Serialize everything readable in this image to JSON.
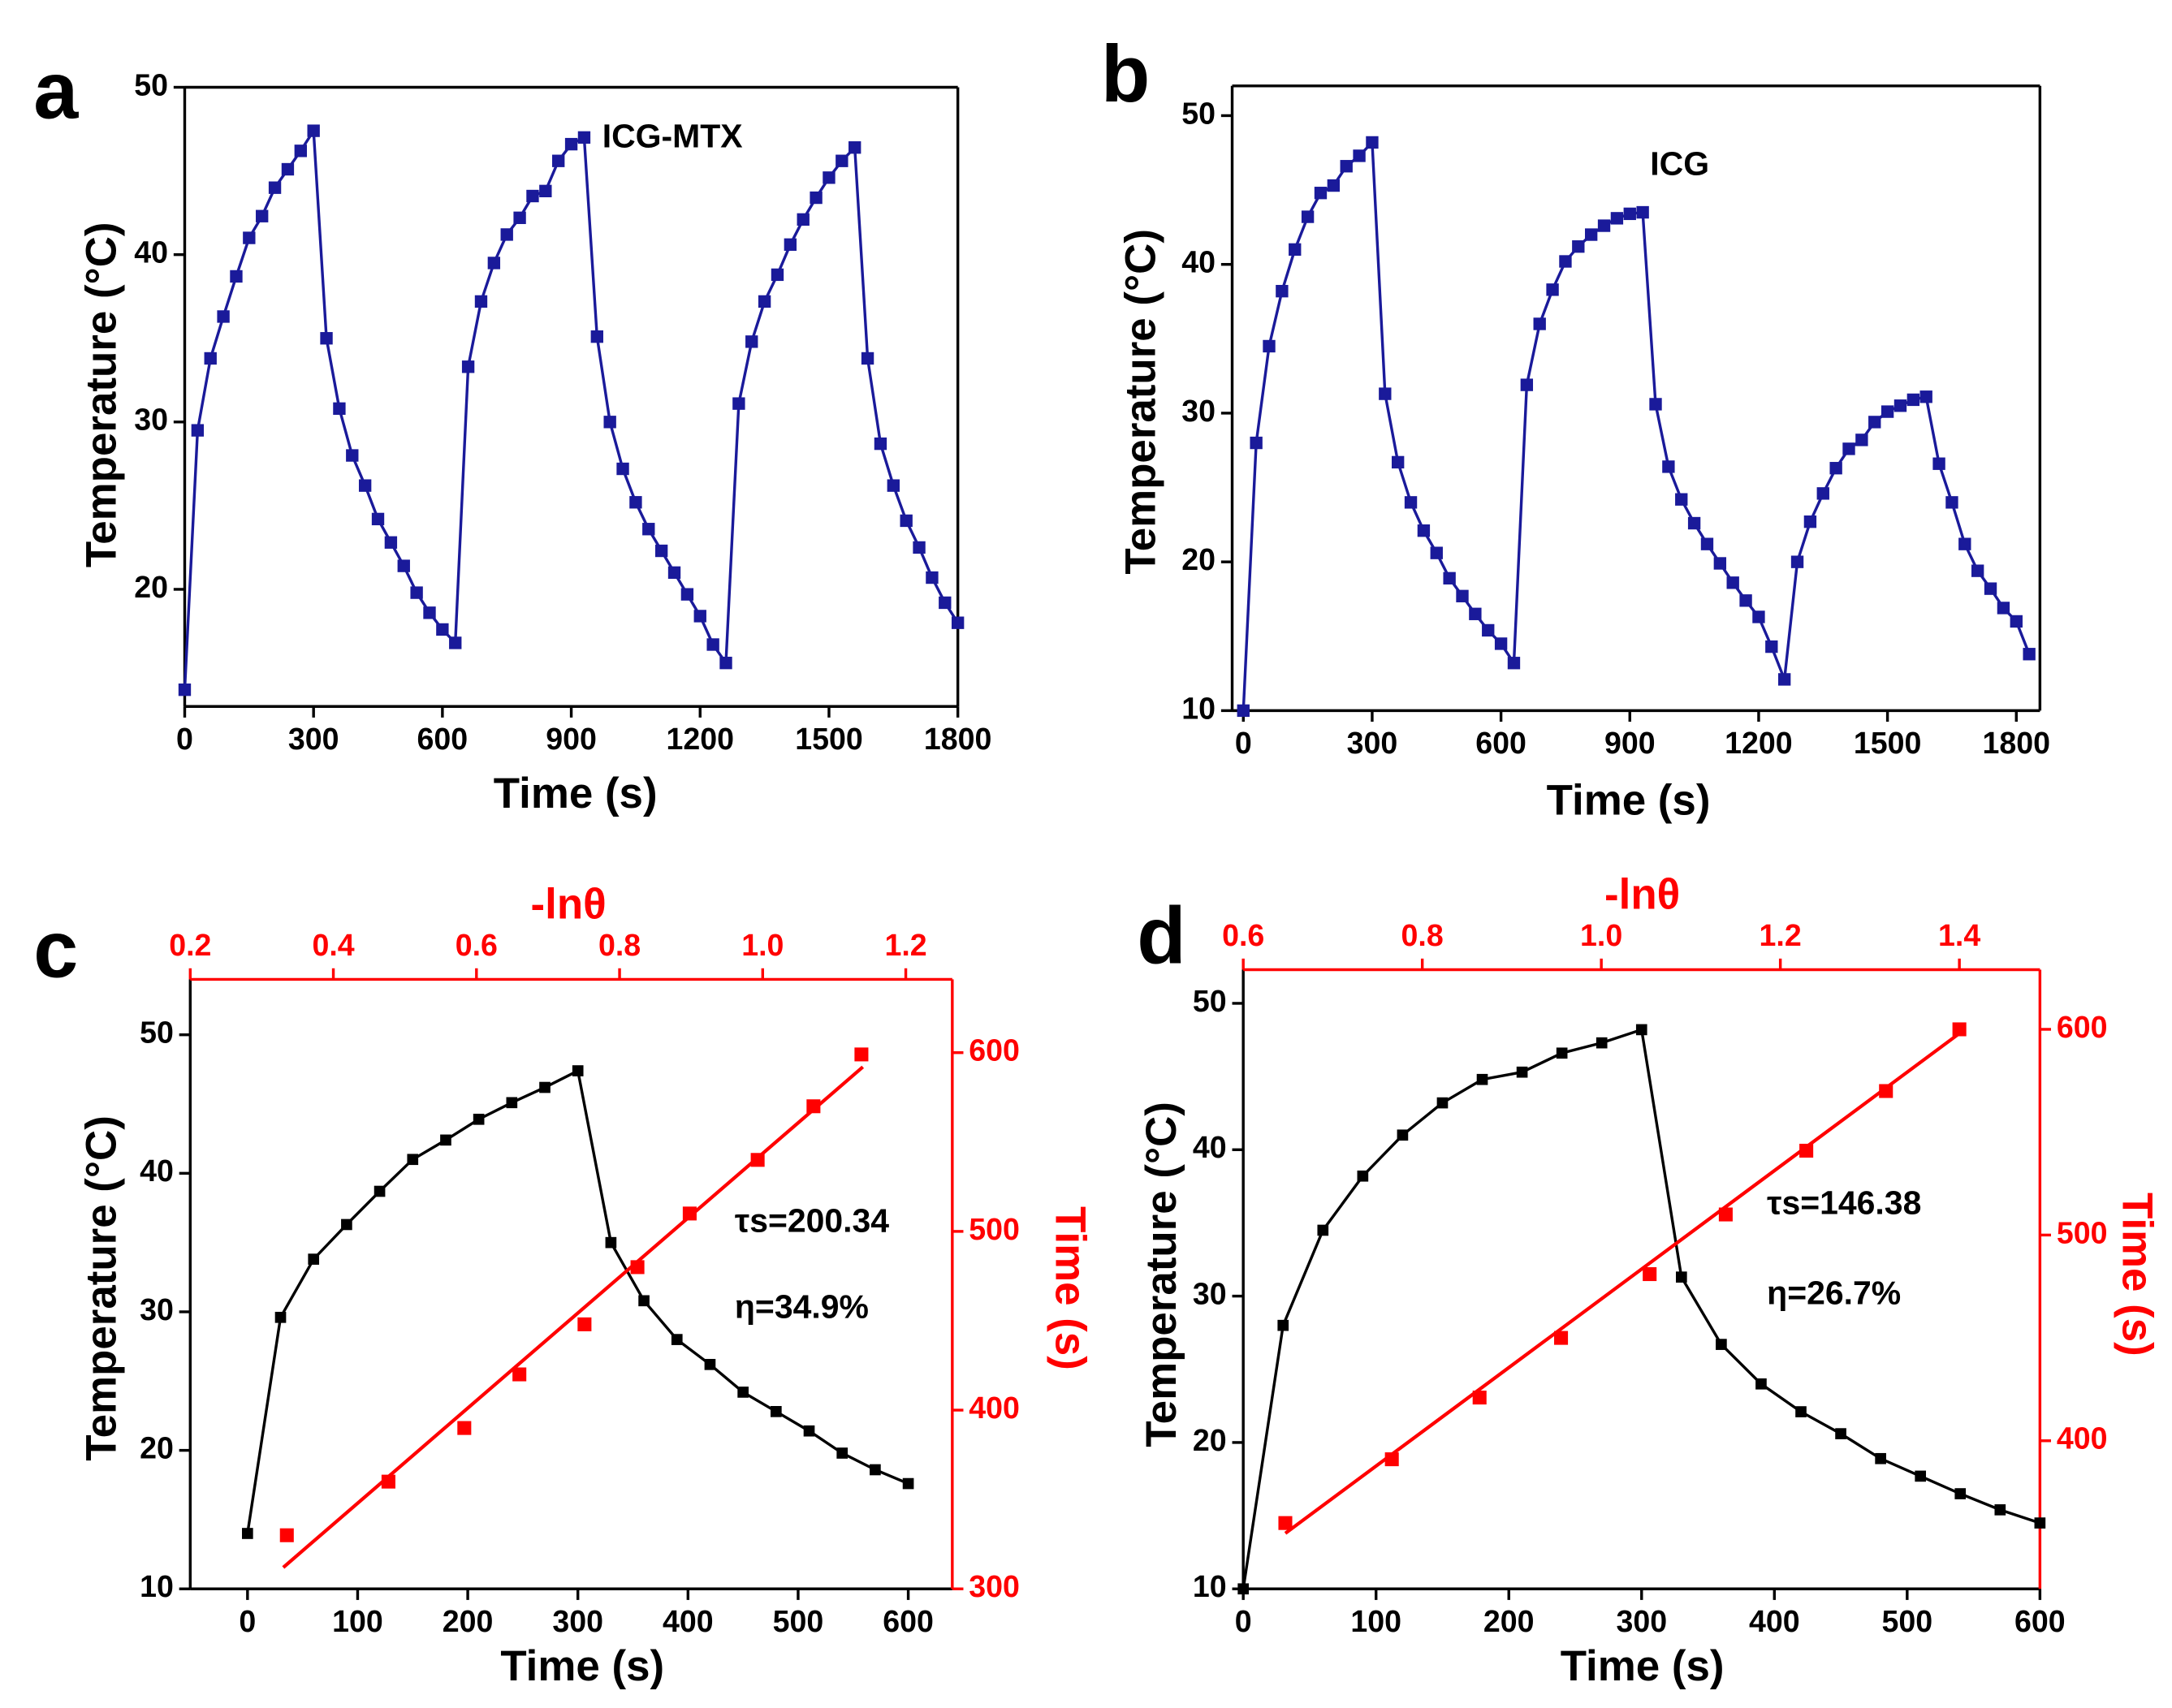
{
  "chart_data": [
    {
      "type": "line",
      "panel": "a",
      "annotation": "ICG-MTX",
      "xlabel": "Time (s)",
      "ylabel": "Temperature (°C)",
      "xlim": [
        0,
        1800
      ],
      "xticks": [
        0,
        300,
        600,
        900,
        1200,
        1500,
        1800
      ],
      "ylim": [
        13,
        50
      ],
      "yticks": [
        20,
        30,
        40,
        50
      ],
      "x": [
        0,
        30,
        60,
        90,
        120,
        150,
        180,
        210,
        240,
        270,
        300,
        330,
        360,
        390,
        420,
        450,
        480,
        510,
        540,
        570,
        600,
        630,
        660,
        690,
        720,
        750,
        780,
        810,
        840,
        870,
        900,
        930,
        960,
        990,
        1020,
        1050,
        1080,
        1110,
        1140,
        1170,
        1200,
        1230,
        1260,
        1290,
        1320,
        1350,
        1380,
        1410,
        1440,
        1470,
        1500,
        1530,
        1560,
        1590,
        1620,
        1650,
        1680,
        1710,
        1740,
        1770,
        1800
      ],
      "series": [
        {
          "color": "#1a1a9a",
          "values": [
            14,
            29.5,
            33.8,
            36.3,
            38.7,
            41,
            42.3,
            44,
            45.1,
            46.2,
            47.4,
            35,
            30.8,
            28,
            26.2,
            24.2,
            22.8,
            21.4,
            19.8,
            18.6,
            17.6,
            16.8,
            33.3,
            37.2,
            39.5,
            41.2,
            42.2,
            43.5,
            43.8,
            45.6,
            46.6,
            47,
            35.1,
            30,
            27.2,
            25.2,
            23.6,
            22.3,
            21,
            19.7,
            18.4,
            16.7,
            15.6,
            31.1,
            34.8,
            37.2,
            38.8,
            40.6,
            42.1,
            43.4,
            44.6,
            45.6,
            46.4,
            33.8,
            28.7,
            26.2,
            24.1,
            22.5,
            20.7,
            19.2,
            18
          ]
        }
      ]
    },
    {
      "type": "line",
      "panel": "b",
      "annotation": "ICG",
      "xlabel": "Time (s)",
      "ylabel": "Temperature (°C)",
      "xlim": [
        -26,
        1855
      ],
      "xticks": [
        0,
        300,
        600,
        900,
        1200,
        1500,
        1800
      ],
      "ylim": [
        10,
        52
      ],
      "yticks": [
        10,
        20,
        30,
        40,
        50
      ],
      "x": [
        0,
        30,
        60,
        90,
        120,
        150,
        180,
        210,
        240,
        270,
        300,
        330,
        360,
        390,
        420,
        450,
        480,
        510,
        540,
        570,
        600,
        630,
        660,
        690,
        720,
        750,
        780,
        810,
        840,
        870,
        900,
        930,
        960,
        990,
        1020,
        1050,
        1080,
        1110,
        1140,
        1170,
        1200,
        1230,
        1260,
        1290,
        1320,
        1350,
        1380,
        1410,
        1440,
        1470,
        1500,
        1530,
        1560,
        1590,
        1620,
        1650,
        1680,
        1710,
        1740,
        1770,
        1800,
        1830
      ],
      "series": [
        {
          "color": "#1a1a9a",
          "values": [
            10,
            28,
            34.5,
            38.2,
            41,
            43.2,
            44.8,
            45.3,
            46.6,
            47.3,
            48.2,
            31.3,
            26.7,
            24,
            22.1,
            20.6,
            18.9,
            17.7,
            16.5,
            15.4,
            14.5,
            13.2,
            31.9,
            36,
            38.3,
            40.2,
            41.2,
            42,
            42.6,
            43.1,
            43.4,
            43.5,
            30.6,
            26.4,
            24.2,
            22.6,
            21.2,
            19.9,
            18.6,
            17.4,
            16.3,
            14.3,
            12.1,
            20,
            22.7,
            24.6,
            26.3,
            27.6,
            28.2,
            29.4,
            30.1,
            30.5,
            30.9,
            31.1,
            26.6,
            24,
            21.2,
            19.4,
            18.2,
            16.9,
            16,
            13.8
          ]
        }
      ]
    },
    {
      "type": "line",
      "panel": "c",
      "annotations": [
        "τs=200.34",
        "η=34.9%"
      ],
      "xlabel": "Time (s)",
      "ylabel": "Temperature (°C)",
      "x2label": "-lnθ",
      "y2label": "Time (s)",
      "xlim": [
        -52,
        640
      ],
      "xticks": [
        0,
        100,
        200,
        300,
        400,
        500,
        600
      ],
      "ylim": [
        10,
        54
      ],
      "yticks": [
        10,
        20,
        30,
        40,
        50
      ],
      "x2lim": [
        0.2,
        1.265
      ],
      "x2ticks": [
        0.2,
        0.4,
        0.6,
        0.8,
        {
          "value": 1,
          "label": "1.0"
        },
        1.2
      ],
      "y2lim": [
        300,
        641
      ],
      "y2ticks": [
        300,
        400,
        500,
        600
      ],
      "x": [
        0,
        30,
        60,
        90,
        120,
        150,
        180,
        210,
        240,
        270,
        300,
        330,
        360,
        390,
        420,
        450,
        480,
        510,
        540,
        570,
        600
      ],
      "series": [
        {
          "color": "#000000",
          "values": [
            14,
            29.6,
            33.8,
            36.3,
            38.7,
            41,
            42.4,
            43.9,
            45.1,
            46.2,
            47.4,
            35,
            30.8,
            28,
            26.2,
            24.2,
            22.8,
            21.4,
            19.8,
            18.6,
            17.6
          ]
        }
      ],
      "scatter": {
        "color": "#ff0000",
        "axis": "y2",
        "x": [
          0.335,
          0.477,
          0.583,
          0.66,
          0.751,
          0.825,
          0.898,
          0.993,
          1.071,
          1.138
        ],
        "values": [
          330,
          360,
          390,
          420,
          448,
          480,
          510,
          540,
          570,
          599
        ]
      },
      "fit": {
        "color": "#ff0000",
        "axis": "y2",
        "x": [
          0.33,
          1.14
        ],
        "values": [
          312,
          592
        ]
      }
    },
    {
      "type": "line",
      "panel": "d",
      "annotations": [
        "τs=146.38",
        "η=26.7%"
      ],
      "xlabel": "Time (s)",
      "ylabel": "Temperature (°C)",
      "x2label": "-lnθ",
      "y2label": "Time (s)",
      "xlim": [
        0,
        600
      ],
      "xticks": [
        0,
        100,
        200,
        300,
        400,
        500,
        600
      ],
      "ylim": [
        10,
        52.3
      ],
      "yticks": [
        10,
        20,
        30,
        40,
        50
      ],
      "x2lim": [
        0.6,
        1.49
      ],
      "x2ticks": [
        0.6,
        0.8,
        {
          "value": 1,
          "label": "1.0"
        },
        1.2,
        1.4
      ],
      "y2lim": [
        328,
        629
      ],
      "y2ticks": [
        400,
        500,
        600
      ],
      "x": [
        0,
        30,
        60,
        90,
        120,
        150,
        180,
        210,
        240,
        270,
        300,
        330,
        360,
        390,
        420,
        450,
        480,
        510,
        540,
        570,
        600
      ],
      "series": [
        {
          "color": "#000000",
          "values": [
            10,
            28,
            34.5,
            38.2,
            41,
            43.2,
            44.8,
            45.3,
            46.6,
            47.3,
            48.2,
            31.3,
            26.7,
            24,
            22.1,
            20.6,
            18.9,
            17.7,
            16.5,
            15.4,
            14.5
          ]
        }
      ],
      "scatter": {
        "color": "#ff0000",
        "axis": "y2",
        "x": [
          0.647,
          0.766,
          0.864,
          0.955,
          1.054,
          1.139,
          1.229,
          1.318,
          1.4
        ],
        "values": [
          360,
          391,
          421,
          450,
          481,
          510,
          541,
          570,
          600
        ]
      },
      "fit": {
        "color": "#ff0000",
        "axis": "y2",
        "x": [
          0.647,
          1.4
        ],
        "values": [
          355,
          598
        ]
      }
    }
  ]
}
